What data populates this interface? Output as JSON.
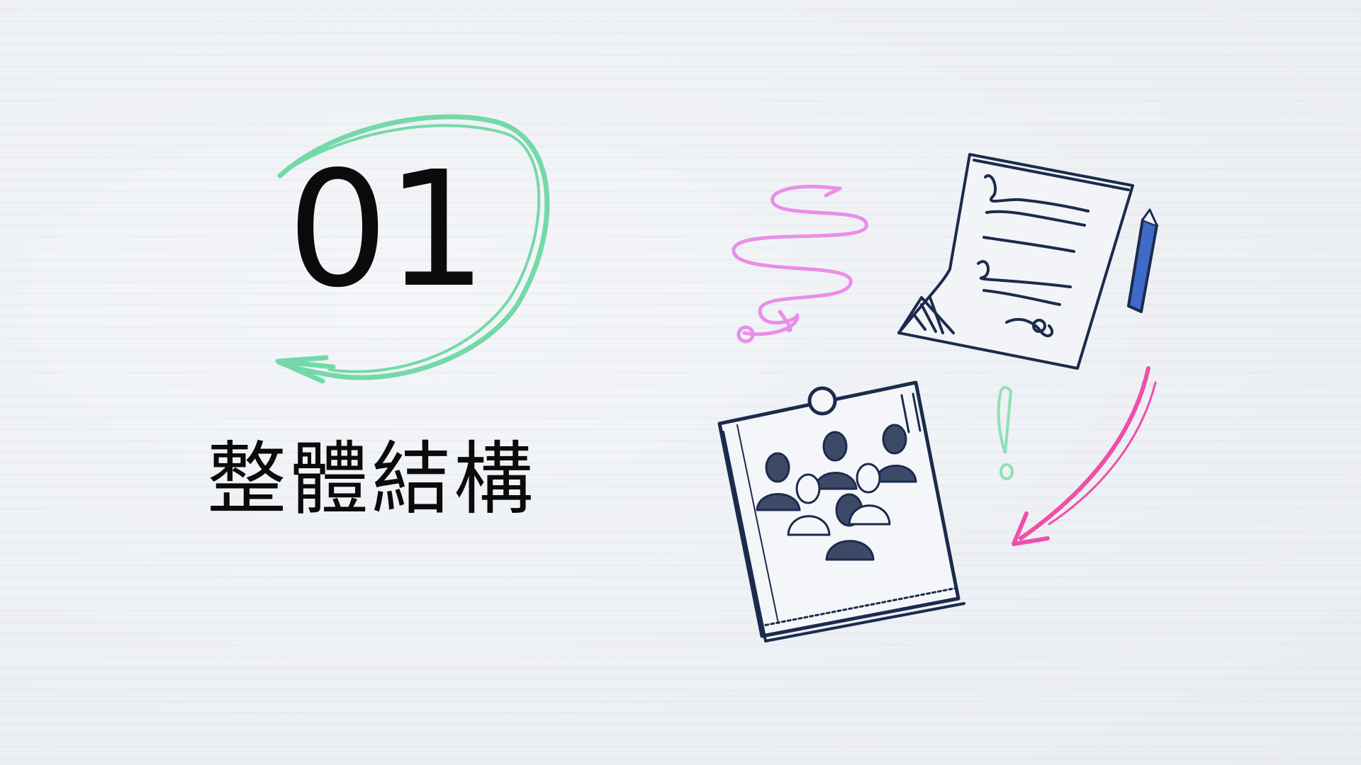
{
  "section": {
    "number": "01",
    "title": "整體結構"
  },
  "decorations": {
    "circle_arrow_icon": "circle-arrow-icon",
    "squiggle_arrow_icon": "squiggle-arrow-icon",
    "document_pen_icon": "signed-document-icon",
    "team_board_icon": "team-board-icon",
    "exclamation_icon": "exclamation-icon",
    "curved_arrow_icon": "curved-arrow-icon"
  },
  "colors": {
    "background": "#eff2f6",
    "text": "#0b0b0b",
    "green_accent": "#74d9a8",
    "violet_accent": "#e98ee8",
    "pink_accent": "#ee4fa8",
    "ink_navy": "#1c2b4d",
    "pen_blue": "#3d6bc7",
    "mint": "#8fe0b6"
  }
}
